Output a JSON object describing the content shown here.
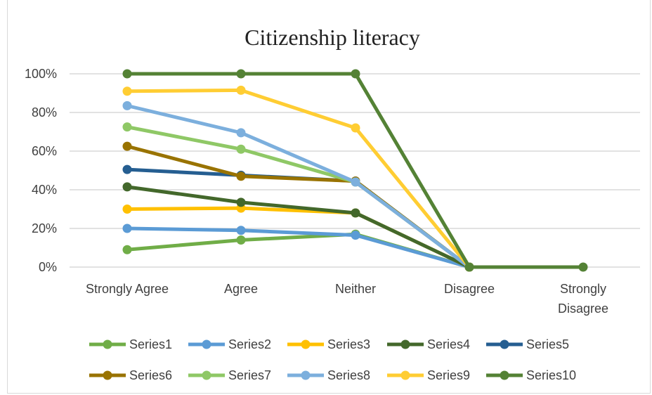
{
  "chart_data": {
    "type": "line",
    "title": "Citizenship literacy",
    "categories": [
      "Strongly Agree",
      "Agree",
      "Neither",
      "Disagree",
      "Strongly Disagree"
    ],
    "category_lines": [
      [
        "Strongly Agree"
      ],
      [
        "Agree"
      ],
      [
        "Neither"
      ],
      [
        "Disagree"
      ],
      [
        "Strongly",
        "Disagree"
      ]
    ],
    "y_ticks": [
      "0%",
      "20%",
      "40%",
      "60%",
      "80%",
      "100%"
    ],
    "ylim": [
      0,
      100
    ],
    "grid": true,
    "legend_position": "bottom",
    "series": [
      {
        "name": "Series1",
        "color": "#70ad47",
        "values": [
          9,
          14,
          17,
          0,
          null
        ]
      },
      {
        "name": "Series2",
        "color": "#5b9bd5",
        "values": [
          20,
          19,
          16.5,
          0,
          null
        ]
      },
      {
        "name": "Series3",
        "color": "#ffc000",
        "values": [
          30,
          30.5,
          28,
          0,
          null
        ]
      },
      {
        "name": "Series4",
        "color": "#43682b",
        "values": [
          41.5,
          33.5,
          28,
          0,
          null
        ]
      },
      {
        "name": "Series5",
        "color": "#255e91",
        "values": [
          50.5,
          47.5,
          44.5,
          0,
          null
        ]
      },
      {
        "name": "Series6",
        "color": "#997300",
        "values": [
          62.5,
          47,
          44.5,
          0,
          null
        ]
      },
      {
        "name": "Series7",
        "color": "#8fc866",
        "values": [
          72.5,
          61,
          44,
          0,
          null
        ]
      },
      {
        "name": "Series8",
        "color": "#7cafdd",
        "values": [
          83.5,
          69.5,
          44,
          0,
          null
        ]
      },
      {
        "name": "Series9",
        "color": "#ffcd33",
        "values": [
          91,
          91.5,
          72,
          0,
          null
        ]
      },
      {
        "name": "Series10",
        "color": "#548235",
        "values": [
          100,
          100,
          100,
          0,
          0
        ]
      }
    ]
  }
}
